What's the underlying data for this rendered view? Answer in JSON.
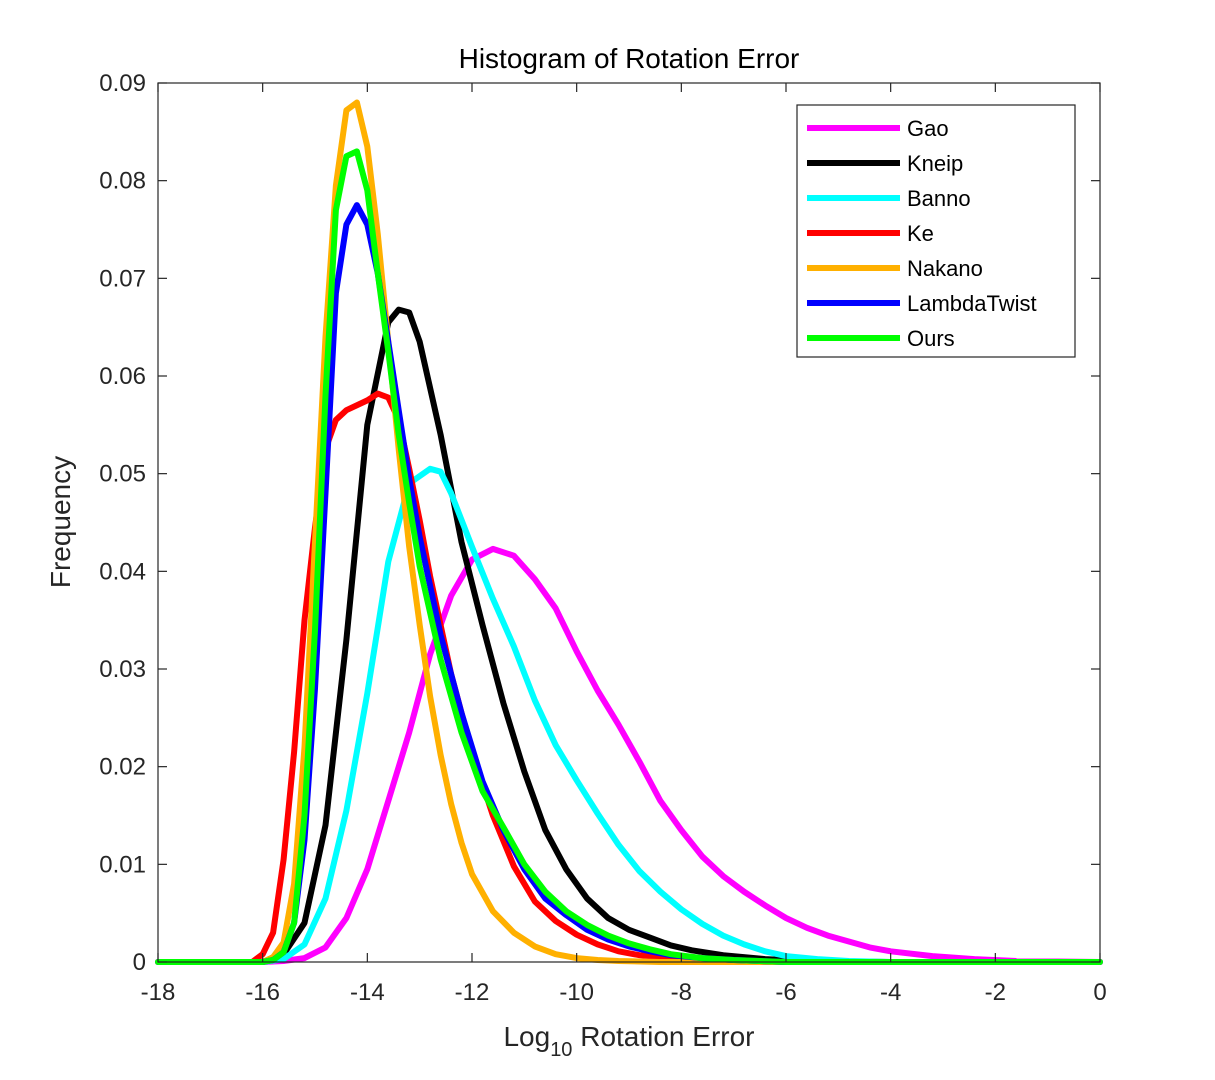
{
  "chart_data": {
    "type": "line",
    "title": "Histogram of Rotation Error",
    "xlabel_main": "Log",
    "xlabel_sub": "10",
    "xlabel_rest": " Rotation Error",
    "ylabel": "Frequency",
    "xlim": [
      -18,
      0
    ],
    "ylim": [
      0,
      0.09
    ],
    "xticks": [
      -18,
      -16,
      -14,
      -12,
      -10,
      -8,
      -6,
      -4,
      -2,
      0
    ],
    "yticks": [
      0,
      0.01,
      0.02,
      0.03,
      0.04,
      0.05,
      0.06,
      0.07,
      0.08,
      0.09
    ],
    "ytick_labels": [
      "0",
      "0.01",
      "0.02",
      "0.03",
      "0.04",
      "0.05",
      "0.06",
      "0.07",
      "0.08",
      "0.09"
    ],
    "legend_position": "top-right",
    "grid": false,
    "series": [
      {
        "name": "Gao",
        "color": "#ff00ff",
        "x": [
          -18,
          -16.0,
          -15.6,
          -15.2,
          -14.8,
          -14.4,
          -14.0,
          -13.6,
          -13.2,
          -12.8,
          -12.4,
          -12.0,
          -11.6,
          -11.2,
          -10.8,
          -10.4,
          -10.0,
          -9.6,
          -9.2,
          -8.8,
          -8.4,
          -8.0,
          -7.6,
          -7.2,
          -6.8,
          -6.4,
          -6.0,
          -5.6,
          -5.2,
          -4.8,
          -4.4,
          -4.0,
          -3.2,
          -2.4,
          -1.6,
          0
        ],
        "y": [
          0,
          0,
          0.0001,
          0.0004,
          0.0015,
          0.0045,
          0.0095,
          0.0165,
          0.0235,
          0.0315,
          0.0375,
          0.0412,
          0.0423,
          0.0416,
          0.0392,
          0.0362,
          0.0318,
          0.0278,
          0.0243,
          0.0205,
          0.0165,
          0.0135,
          0.0108,
          0.0088,
          0.0072,
          0.0058,
          0.0045,
          0.0035,
          0.0027,
          0.0021,
          0.0015,
          0.0011,
          0.0006,
          0.0003,
          0.0001,
          0
        ]
      },
      {
        "name": "Kneip",
        "color": "#000000",
        "x": [
          -18,
          -16.0,
          -15.6,
          -15.2,
          -14.8,
          -14.4,
          -14.0,
          -13.6,
          -13.4,
          -13.2,
          -13.0,
          -12.6,
          -12.2,
          -11.8,
          -11.4,
          -11.0,
          -10.6,
          -10.2,
          -9.8,
          -9.4,
          -9.0,
          -8.6,
          -8.2,
          -7.8,
          -7.2,
          -6.4,
          -5.6,
          -4.0,
          0
        ],
        "y": [
          0,
          0,
          0.0008,
          0.004,
          0.014,
          0.033,
          0.055,
          0.0655,
          0.0668,
          0.0665,
          0.0635,
          0.054,
          0.043,
          0.0345,
          0.0265,
          0.0195,
          0.0135,
          0.0095,
          0.0065,
          0.0045,
          0.0033,
          0.0025,
          0.0017,
          0.0012,
          0.0007,
          0.0003,
          0.0001,
          0,
          0
        ]
      },
      {
        "name": "Banno",
        "color": "#00ffff",
        "x": [
          -18,
          -16.0,
          -15.6,
          -15.2,
          -14.8,
          -14.4,
          -14.0,
          -13.6,
          -13.2,
          -12.8,
          -12.6,
          -12.4,
          -12.0,
          -11.6,
          -11.2,
          -10.8,
          -10.4,
          -10.0,
          -9.6,
          -9.2,
          -8.8,
          -8.4,
          -8.0,
          -7.6,
          -7.2,
          -6.8,
          -6.4,
          -6.0,
          -5.4,
          -4.8,
          -4.0,
          -2.0,
          0
        ],
        "y": [
          0,
          0,
          0.0003,
          0.0018,
          0.0065,
          0.0155,
          0.0275,
          0.041,
          0.049,
          0.0505,
          0.0502,
          0.048,
          0.0425,
          0.0372,
          0.0323,
          0.0268,
          0.0222,
          0.0186,
          0.0152,
          0.012,
          0.0093,
          0.0072,
          0.0054,
          0.0039,
          0.0027,
          0.0018,
          0.0011,
          0.0006,
          0.0003,
          0.0001,
          0,
          0,
          0
        ]
      },
      {
        "name": "Ke",
        "color": "#ff0000",
        "x": [
          -18,
          -16.2,
          -16.0,
          -15.8,
          -15.6,
          -15.4,
          -15.2,
          -15.0,
          -14.8,
          -14.6,
          -14.4,
          -14.0,
          -13.8,
          -13.6,
          -13.4,
          -13.2,
          -13.0,
          -12.8,
          -12.4,
          -12.0,
          -11.6,
          -11.2,
          -10.8,
          -10.4,
          -10.0,
          -9.6,
          -9.2,
          -8.8,
          -8.0,
          -7.0,
          -6.0,
          0
        ],
        "y": [
          0,
          0,
          0.0008,
          0.003,
          0.0105,
          0.0215,
          0.035,
          0.0445,
          0.0525,
          0.0555,
          0.0565,
          0.0575,
          0.0582,
          0.0578,
          0.0555,
          0.0505,
          0.0452,
          0.0395,
          0.0295,
          0.0215,
          0.015,
          0.0098,
          0.0062,
          0.0042,
          0.0028,
          0.0018,
          0.0011,
          0.0007,
          0.0003,
          0.0001,
          0,
          0
        ]
      },
      {
        "name": "Nakano",
        "color": "#ffb000",
        "x": [
          -18,
          -16.0,
          -15.8,
          -15.6,
          -15.4,
          -15.2,
          -15.0,
          -14.8,
          -14.6,
          -14.4,
          -14.2,
          -14.0,
          -13.8,
          -13.6,
          -13.4,
          -13.2,
          -13.0,
          -12.8,
          -12.6,
          -12.4,
          -12.2,
          -12.0,
          -11.6,
          -11.2,
          -10.8,
          -10.4,
          -10.0,
          -9.6,
          -9.2,
          -8.4,
          0
        ],
        "y": [
          0,
          0,
          0.0005,
          0.002,
          0.008,
          0.022,
          0.043,
          0.064,
          0.0795,
          0.0872,
          0.088,
          0.0835,
          0.0745,
          0.0635,
          0.0525,
          0.0425,
          0.0345,
          0.0272,
          0.0212,
          0.0162,
          0.0122,
          0.009,
          0.0052,
          0.003,
          0.0016,
          0.0008,
          0.0004,
          0.0002,
          0.0001,
          0,
          0
        ]
      },
      {
        "name": "LambdaTwist",
        "color": "#0000ff",
        "x": [
          -18,
          -16.0,
          -15.8,
          -15.6,
          -15.4,
          -15.2,
          -15.0,
          -14.8,
          -14.6,
          -14.4,
          -14.2,
          -14.0,
          -13.8,
          -13.6,
          -13.4,
          -13.2,
          -13.0,
          -12.6,
          -12.2,
          -11.8,
          -11.4,
          -11.0,
          -10.6,
          -10.2,
          -9.8,
          -9.4,
          -9.0,
          -8.6,
          -8.2,
          -7.6,
          -7.0,
          -6.0,
          0
        ],
        "y": [
          0,
          0,
          0.0002,
          0.001,
          0.004,
          0.0125,
          0.028,
          0.048,
          0.0685,
          0.0755,
          0.0775,
          0.0755,
          0.0705,
          0.0635,
          0.0565,
          0.0495,
          0.0435,
          0.0335,
          0.0255,
          0.0185,
          0.0135,
          0.0095,
          0.0065,
          0.0048,
          0.0033,
          0.0023,
          0.0016,
          0.0011,
          0.0007,
          0.0004,
          0.0002,
          0,
          0
        ]
      },
      {
        "name": "Ours",
        "color": "#00ff00",
        "x": [
          -18,
          -16.0,
          -15.8,
          -15.6,
          -15.4,
          -15.2,
          -15.0,
          -14.8,
          -14.6,
          -14.4,
          -14.2,
          -14.0,
          -13.8,
          -13.6,
          -13.4,
          -13.2,
          -13.0,
          -12.6,
          -12.2,
          -11.8,
          -11.4,
          -11.0,
          -10.6,
          -10.2,
          -9.8,
          -9.4,
          -9.0,
          -8.6,
          -8.2,
          -7.6,
          -7.0,
          -6.0,
          0
        ],
        "y": [
          0,
          0,
          0.0002,
          0.001,
          0.004,
          0.015,
          0.034,
          0.058,
          0.077,
          0.0825,
          0.083,
          0.079,
          0.0705,
          0.0625,
          0.054,
          0.047,
          0.0405,
          0.031,
          0.0235,
          0.0175,
          0.0138,
          0.01,
          0.0072,
          0.0052,
          0.0038,
          0.0027,
          0.0019,
          0.0013,
          0.0008,
          0.0004,
          0.0002,
          0,
          0
        ]
      }
    ]
  }
}
